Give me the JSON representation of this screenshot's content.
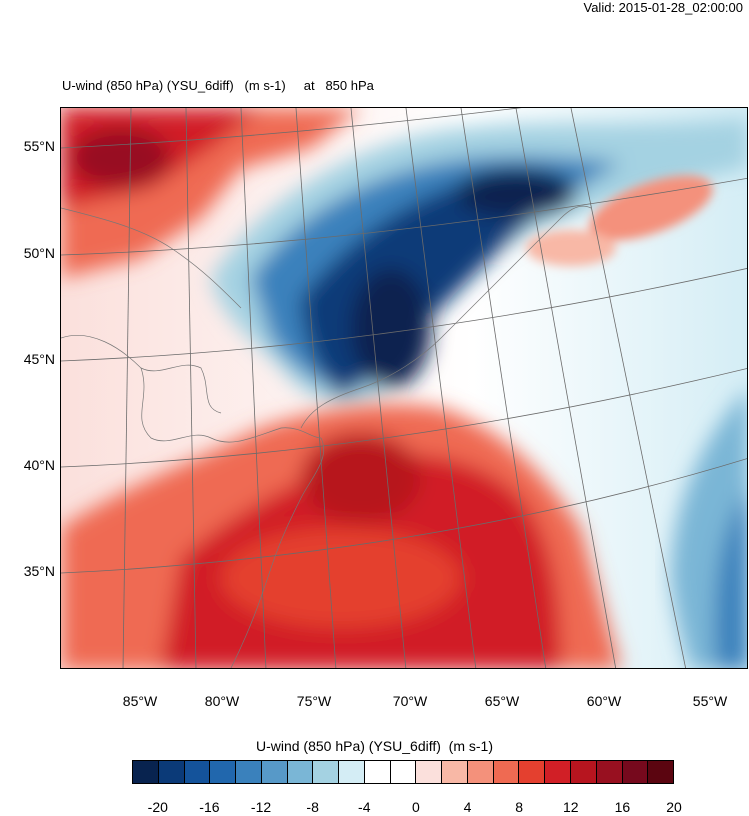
{
  "valid_label": "Valid: 2015-01-28_02:00:00",
  "plot_title": "U-wind (850 hPa) (YSU_6diff)   (m s-1)     at   850 hPa",
  "latitude_labels": [
    "55°N",
    "50°N",
    "45°N",
    "40°N",
    "35°N"
  ],
  "longitude_labels": [
    "85°W",
    "80°W",
    "75°W",
    "70°W",
    "65°W",
    "60°W",
    "55°W"
  ],
  "colorbar": {
    "title": "U-wind (850 hPa) (YSU_6diff)  (m s-1)",
    "tick_labels": [
      "-20",
      "-16",
      "-12",
      "-8",
      "-4",
      "0",
      "4",
      "8",
      "12",
      "16",
      "20"
    ],
    "colors": [
      "#08234f",
      "#0b3a78",
      "#14539b",
      "#2167ad",
      "#3a81bc",
      "#5799c8",
      "#7ab6d6",
      "#a4d2e2",
      "#d4edf5",
      "#ffffff",
      "#ffffff",
      "#fbe0dc",
      "#f8b8a6",
      "#f4917b",
      "#ef6a52",
      "#e4402f",
      "#d11f26",
      "#b7151f",
      "#981020",
      "#76091d",
      "#5b0510"
    ]
  },
  "field_colors": {
    "strong_negative": "#08234f",
    "negative": "#2167ad",
    "weak_negative": "#a4d2e2",
    "zero": "#ffffff",
    "weak_positive": "#f8b8a6",
    "positive": "#e4402f",
    "strong_positive": "#b7151f"
  }
}
